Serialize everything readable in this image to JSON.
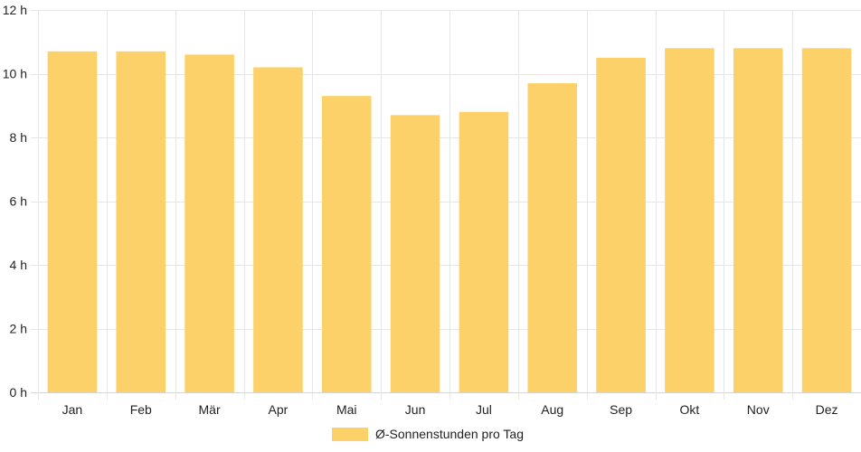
{
  "chart_data": {
    "type": "bar",
    "categories": [
      "Jan",
      "Feb",
      "Mär",
      "Apr",
      "Mai",
      "Jun",
      "Jul",
      "Aug",
      "Sep",
      "Okt",
      "Nov",
      "Dez"
    ],
    "series": [
      {
        "name": "Ø-Sonnenstunden pro Tag",
        "values": [
          10.7,
          10.7,
          10.6,
          10.2,
          9.3,
          8.7,
          8.8,
          9.7,
          10.5,
          10.8,
          10.8,
          10.8
        ],
        "color": "#FDD16A"
      }
    ],
    "ylim": [
      0,
      12
    ],
    "yticks": [
      0,
      2,
      4,
      6,
      8,
      10,
      12
    ],
    "ytick_labels": [
      "0 h",
      "2 h",
      "4 h",
      "6 h",
      "8 h",
      "10 h",
      "12 h"
    ],
    "grid": true,
    "legend_position": "bottom"
  }
}
